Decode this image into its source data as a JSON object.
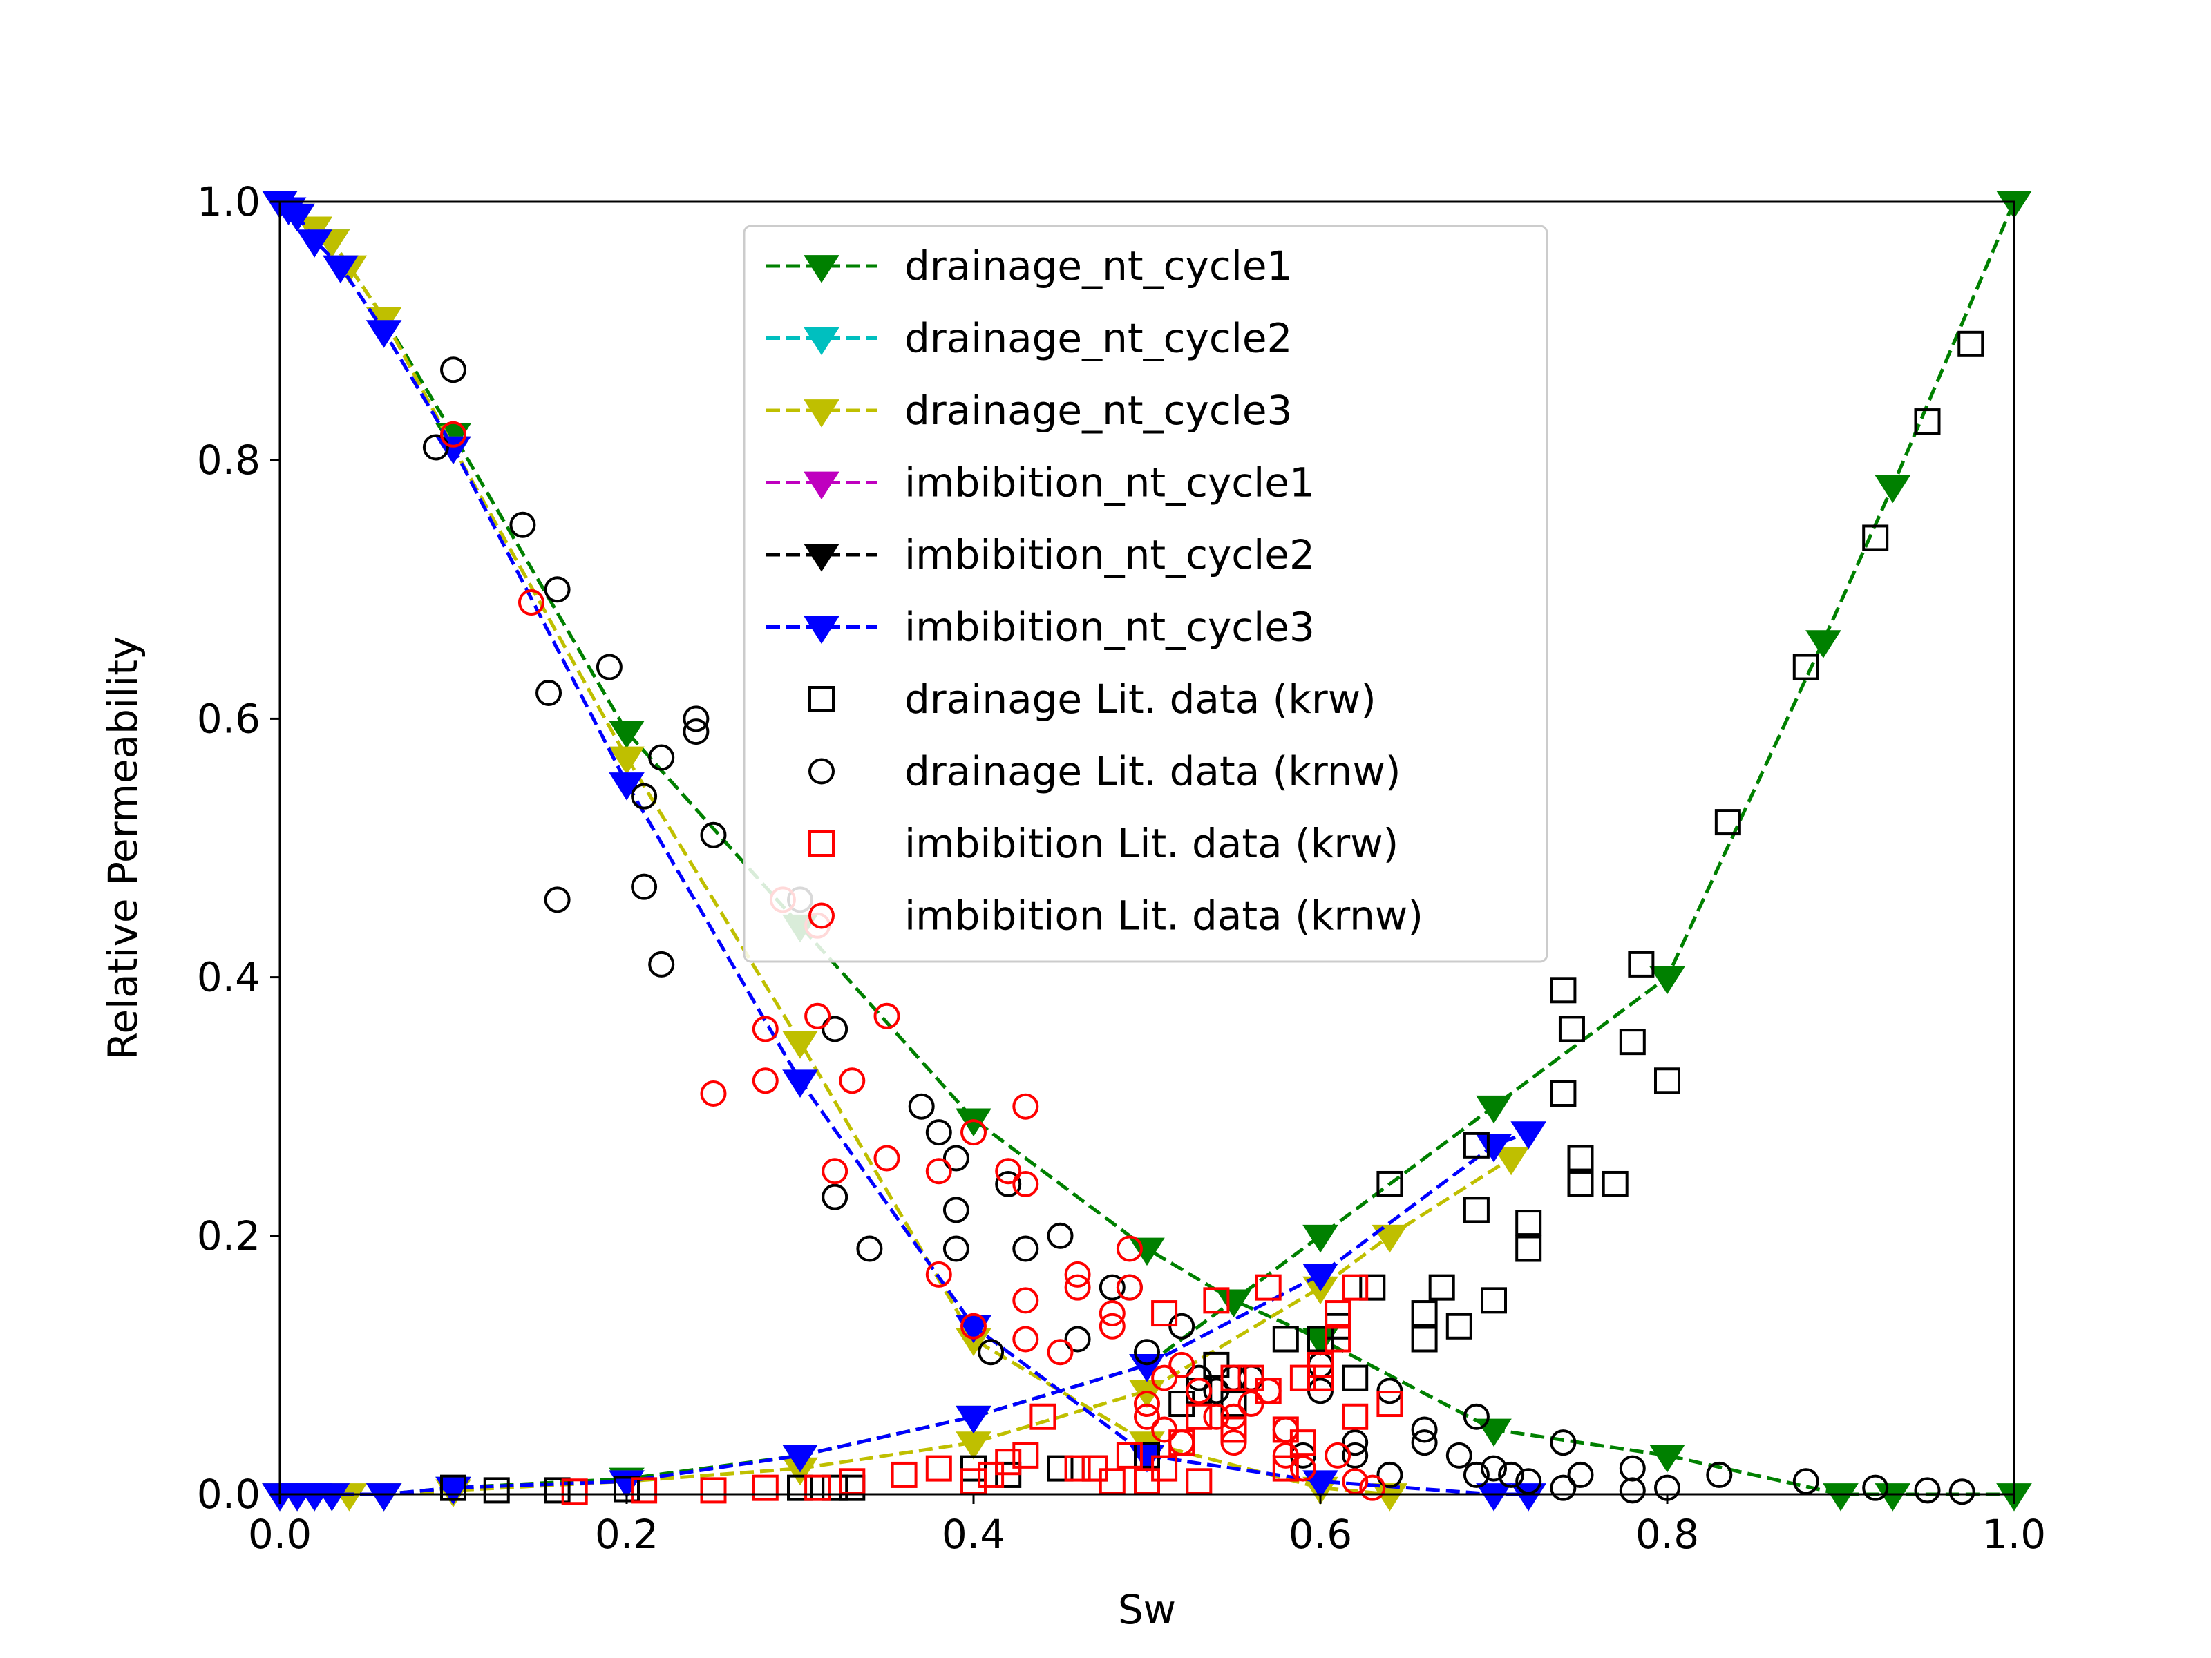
{
  "chart_data": {
    "type": "scatter",
    "title": "",
    "xlabel": "Sw",
    "ylabel": "Relative Permeability",
    "xlim": [
      0.0,
      1.0
    ],
    "ylim": [
      0.0,
      1.0
    ],
    "xticks": [
      "0.0",
      "0.2",
      "0.4",
      "0.6",
      "0.8",
      "1.0"
    ],
    "yticks": [
      "0.0",
      "0.2",
      "0.4",
      "0.6",
      "0.8",
      "1.0"
    ],
    "grid": false,
    "legend_position": "upper-center",
    "series": [
      {
        "name": "drainage_nt_cycle1",
        "style": "line-marker",
        "marker": "triangle-down",
        "color": "#008000",
        "curves": [
          {
            "x": [
              0.0,
              0.01,
              0.02,
              0.03,
              0.06,
              0.1,
              0.2,
              0.3,
              0.4,
              0.5,
              0.55,
              0.6,
              0.7,
              0.8,
              0.9,
              0.93,
              1.0
            ],
            "y": [
              1.0,
              0.99,
              0.98,
              0.97,
              0.91,
              0.82,
              0.59,
              0.44,
              0.29,
              0.19,
              0.15,
              0.12,
              0.05,
              0.03,
              0.0,
              0.0,
              0.0
            ]
          },
          {
            "x": [
              0.0,
              0.01,
              0.02,
              0.03,
              0.06,
              0.1,
              0.2,
              0.3,
              0.4,
              0.5,
              0.6,
              0.7,
              0.8,
              0.89,
              0.93,
              1.0
            ],
            "y": [
              0.0,
              0.0,
              0.0,
              0.0,
              0.0,
              0.005,
              0.012,
              0.03,
              0.06,
              0.1,
              0.2,
              0.3,
              0.4,
              0.66,
              0.78,
              1.0
            ]
          }
        ]
      },
      {
        "name": "drainage_nt_cycle2",
        "style": "line-marker",
        "marker": "triangle-down",
        "color": "#00bfbf",
        "curves": []
      },
      {
        "name": "drainage_nt_cycle3",
        "style": "line-marker",
        "marker": "triangle-down",
        "color": "#bfbf00",
        "curves": [
          {
            "x": [
              0.0,
              0.01,
              0.02,
              0.03,
              0.04,
              0.06,
              0.1,
              0.2,
              0.3,
              0.4,
              0.5,
              0.6,
              0.64
            ],
            "y": [
              1.0,
              0.99,
              0.98,
              0.97,
              0.95,
              0.91,
              0.81,
              0.57,
              0.35,
              0.12,
              0.04,
              0.005,
              0.0
            ]
          },
          {
            "x": [
              0.0,
              0.01,
              0.02,
              0.04,
              0.06,
              0.1,
              0.2,
              0.3,
              0.4,
              0.5,
              0.6,
              0.64,
              0.71
            ],
            "y": [
              0.0,
              0.0,
              0.0,
              0.0,
              0.0,
              0.003,
              0.01,
              0.02,
              0.04,
              0.08,
              0.16,
              0.2,
              0.26
            ]
          }
        ]
      },
      {
        "name": "imbibition_nt_cycle1",
        "style": "line-marker",
        "marker": "triangle-down",
        "color": "#bf00bf",
        "curves": []
      },
      {
        "name": "imbibition_nt_cycle2",
        "style": "line-marker",
        "marker": "triangle-down",
        "color": "#000000",
        "curves": []
      },
      {
        "name": "imbibition_nt_cycle3",
        "style": "line-marker",
        "marker": "triangle-down",
        "color": "#0000ff",
        "curves": [
          {
            "x": [
              0.0,
              0.005,
              0.01,
              0.02,
              0.035,
              0.06,
              0.1,
              0.2,
              0.3,
              0.4,
              0.5,
              0.6,
              0.7,
              0.72
            ],
            "y": [
              1.0,
              0.995,
              0.99,
              0.97,
              0.95,
              0.9,
              0.81,
              0.55,
              0.32,
              0.13,
              0.03,
              0.01,
              0.0,
              0.0
            ]
          },
          {
            "x": [
              0.0,
              0.01,
              0.02,
              0.03,
              0.06,
              0.1,
              0.2,
              0.3,
              0.4,
              0.5,
              0.6,
              0.7,
              0.72
            ],
            "y": [
              0.0,
              0.0,
              0.0,
              0.0,
              0.0,
              0.005,
              0.01,
              0.03,
              0.06,
              0.1,
              0.17,
              0.27,
              0.28
            ]
          }
        ]
      },
      {
        "name": "drainage Lit. data (krw)",
        "style": "marker",
        "marker": "square",
        "color": "#000000",
        "points": [
          [
            0.1,
            0.005
          ],
          [
            0.125,
            0.003
          ],
          [
            0.16,
            0.003
          ],
          [
            0.2,
            0.004
          ],
          [
            0.3,
            0.005
          ],
          [
            0.32,
            0.005
          ],
          [
            0.33,
            0.005
          ],
          [
            0.4,
            0.02
          ],
          [
            0.42,
            0.015
          ],
          [
            0.45,
            0.02
          ],
          [
            0.47,
            0.02
          ],
          [
            0.5,
            0.03
          ],
          [
            0.52,
            0.07
          ],
          [
            0.53,
            0.08
          ],
          [
            0.54,
            0.1
          ],
          [
            0.55,
            0.07
          ],
          [
            0.58,
            0.12
          ],
          [
            0.6,
            0.12
          ],
          [
            0.61,
            0.13
          ],
          [
            0.62,
            0.09
          ],
          [
            0.63,
            0.16
          ],
          [
            0.64,
            0.24
          ],
          [
            0.66,
            0.14
          ],
          [
            0.66,
            0.12
          ],
          [
            0.67,
            0.16
          ],
          [
            0.68,
            0.13
          ],
          [
            0.69,
            0.27
          ],
          [
            0.69,
            0.22
          ],
          [
            0.7,
            0.15
          ],
          [
            0.72,
            0.21
          ],
          [
            0.72,
            0.19
          ],
          [
            0.74,
            0.39
          ],
          [
            0.745,
            0.36
          ],
          [
            0.74,
            0.31
          ],
          [
            0.75,
            0.26
          ],
          [
            0.75,
            0.24
          ],
          [
            0.77,
            0.24
          ],
          [
            0.78,
            0.35
          ],
          [
            0.785,
            0.41
          ],
          [
            0.8,
            0.32
          ],
          [
            0.835,
            0.52
          ],
          [
            0.88,
            0.64
          ],
          [
            0.92,
            0.74
          ],
          [
            0.95,
            0.83
          ],
          [
            0.975,
            0.89
          ]
        ]
      },
      {
        "name": "drainage Lit. data (krnw)",
        "style": "marker",
        "marker": "circle",
        "color": "#000000",
        "points": [
          [
            0.1,
            0.87
          ],
          [
            0.09,
            0.81
          ],
          [
            0.14,
            0.75
          ],
          [
            0.16,
            0.7
          ],
          [
            0.155,
            0.62
          ],
          [
            0.16,
            0.46
          ],
          [
            0.19,
            0.64
          ],
          [
            0.21,
            0.54
          ],
          [
            0.22,
            0.57
          ],
          [
            0.21,
            0.47
          ],
          [
            0.22,
            0.41
          ],
          [
            0.24,
            0.6
          ],
          [
            0.24,
            0.59
          ],
          [
            0.25,
            0.51
          ],
          [
            0.3,
            0.46
          ],
          [
            0.32,
            0.36
          ],
          [
            0.32,
            0.23
          ],
          [
            0.34,
            0.19
          ],
          [
            0.37,
            0.3
          ],
          [
            0.38,
            0.28
          ],
          [
            0.39,
            0.26
          ],
          [
            0.39,
            0.22
          ],
          [
            0.39,
            0.19
          ],
          [
            0.41,
            0.11
          ],
          [
            0.42,
            0.24
          ],
          [
            0.43,
            0.19
          ],
          [
            0.45,
            0.2
          ],
          [
            0.46,
            0.12
          ],
          [
            0.48,
            0.16
          ],
          [
            0.49,
            0.16
          ],
          [
            0.5,
            0.11
          ],
          [
            0.52,
            0.13
          ],
          [
            0.53,
            0.09
          ],
          [
            0.54,
            0.08
          ],
          [
            0.55,
            0.09
          ],
          [
            0.56,
            0.09
          ],
          [
            0.58,
            0.05
          ],
          [
            0.59,
            0.03
          ],
          [
            0.6,
            0.1
          ],
          [
            0.6,
            0.08
          ],
          [
            0.62,
            0.04
          ],
          [
            0.62,
            0.03
          ],
          [
            0.64,
            0.08
          ],
          [
            0.64,
            0.015
          ],
          [
            0.66,
            0.05
          ],
          [
            0.66,
            0.04
          ],
          [
            0.68,
            0.03
          ],
          [
            0.69,
            0.06
          ],
          [
            0.69,
            0.015
          ],
          [
            0.7,
            0.02
          ],
          [
            0.71,
            0.015
          ],
          [
            0.72,
            0.01
          ],
          [
            0.74,
            0.04
          ],
          [
            0.74,
            0.005
          ],
          [
            0.75,
            0.015
          ],
          [
            0.78,
            0.02
          ],
          [
            0.78,
            0.003
          ],
          [
            0.8,
            0.005
          ],
          [
            0.83,
            0.015
          ],
          [
            0.88,
            0.01
          ],
          [
            0.92,
            0.005
          ],
          [
            0.95,
            0.003
          ],
          [
            0.97,
            0.002
          ]
        ]
      },
      {
        "name": "imbibition Lit. data (krw)",
        "style": "marker",
        "marker": "square",
        "color": "#ff0000",
        "points": [
          [
            0.17,
            0.002
          ],
          [
            0.21,
            0.003
          ],
          [
            0.25,
            0.003
          ],
          [
            0.28,
            0.005
          ],
          [
            0.31,
            0.005
          ],
          [
            0.33,
            0.01
          ],
          [
            0.36,
            0.015
          ],
          [
            0.38,
            0.02
          ],
          [
            0.4,
            0.01
          ],
          [
            0.41,
            0.015
          ],
          [
            0.42,
            0.025
          ],
          [
            0.43,
            0.03
          ],
          [
            0.44,
            0.06
          ],
          [
            0.46,
            0.02
          ],
          [
            0.47,
            0.02
          ],
          [
            0.48,
            0.01
          ],
          [
            0.49,
            0.03
          ],
          [
            0.5,
            0.01
          ],
          [
            0.51,
            0.02
          ],
          [
            0.51,
            0.14
          ],
          [
            0.52,
            0.04
          ],
          [
            0.53,
            0.06
          ],
          [
            0.53,
            0.01
          ],
          [
            0.54,
            0.15
          ],
          [
            0.55,
            0.05
          ],
          [
            0.55,
            0.09
          ],
          [
            0.56,
            0.09
          ],
          [
            0.57,
            0.08
          ],
          [
            0.57,
            0.16
          ],
          [
            0.58,
            0.05
          ],
          [
            0.58,
            0.02
          ],
          [
            0.59,
            0.09
          ],
          [
            0.59,
            0.04
          ],
          [
            0.6,
            0.1
          ],
          [
            0.6,
            0.09
          ],
          [
            0.61,
            0.14
          ],
          [
            0.61,
            0.12
          ],
          [
            0.62,
            0.16
          ],
          [
            0.62,
            0.06
          ],
          [
            0.64,
            0.07
          ]
        ]
      },
      {
        "name": "imbibition Lit. data (krnw)",
        "style": "marker",
        "marker": "circle",
        "color": "#ff0000",
        "points": [
          [
            0.1,
            0.82
          ],
          [
            0.145,
            0.69
          ],
          [
            0.25,
            0.31
          ],
          [
            0.28,
            0.32
          ],
          [
            0.28,
            0.36
          ],
          [
            0.29,
            0.46
          ],
          [
            0.31,
            0.44
          ],
          [
            0.31,
            0.37
          ],
          [
            0.33,
            0.32
          ],
          [
            0.32,
            0.25
          ],
          [
            0.35,
            0.37
          ],
          [
            0.35,
            0.26
          ],
          [
            0.38,
            0.25
          ],
          [
            0.38,
            0.17
          ],
          [
            0.4,
            0.13
          ],
          [
            0.4,
            0.28
          ],
          [
            0.42,
            0.25
          ],
          [
            0.43,
            0.3
          ],
          [
            0.43,
            0.24
          ],
          [
            0.43,
            0.15
          ],
          [
            0.43,
            0.12
          ],
          [
            0.45,
            0.11
          ],
          [
            0.46,
            0.17
          ],
          [
            0.46,
            0.16
          ],
          [
            0.48,
            0.14
          ],
          [
            0.48,
            0.13
          ],
          [
            0.49,
            0.19
          ],
          [
            0.49,
            0.16
          ],
          [
            0.5,
            0.07
          ],
          [
            0.5,
            0.06
          ],
          [
            0.51,
            0.09
          ],
          [
            0.51,
            0.05
          ],
          [
            0.52,
            0.04
          ],
          [
            0.52,
            0.1
          ],
          [
            0.53,
            0.08
          ],
          [
            0.54,
            0.06
          ],
          [
            0.55,
            0.04
          ],
          [
            0.55,
            0.06
          ],
          [
            0.56,
            0.07
          ],
          [
            0.57,
            0.08
          ],
          [
            0.58,
            0.05
          ],
          [
            0.58,
            0.03
          ],
          [
            0.59,
            0.02
          ],
          [
            0.61,
            0.03
          ],
          [
            0.62,
            0.01
          ],
          [
            0.63,
            0.005
          ]
        ]
      }
    ]
  }
}
